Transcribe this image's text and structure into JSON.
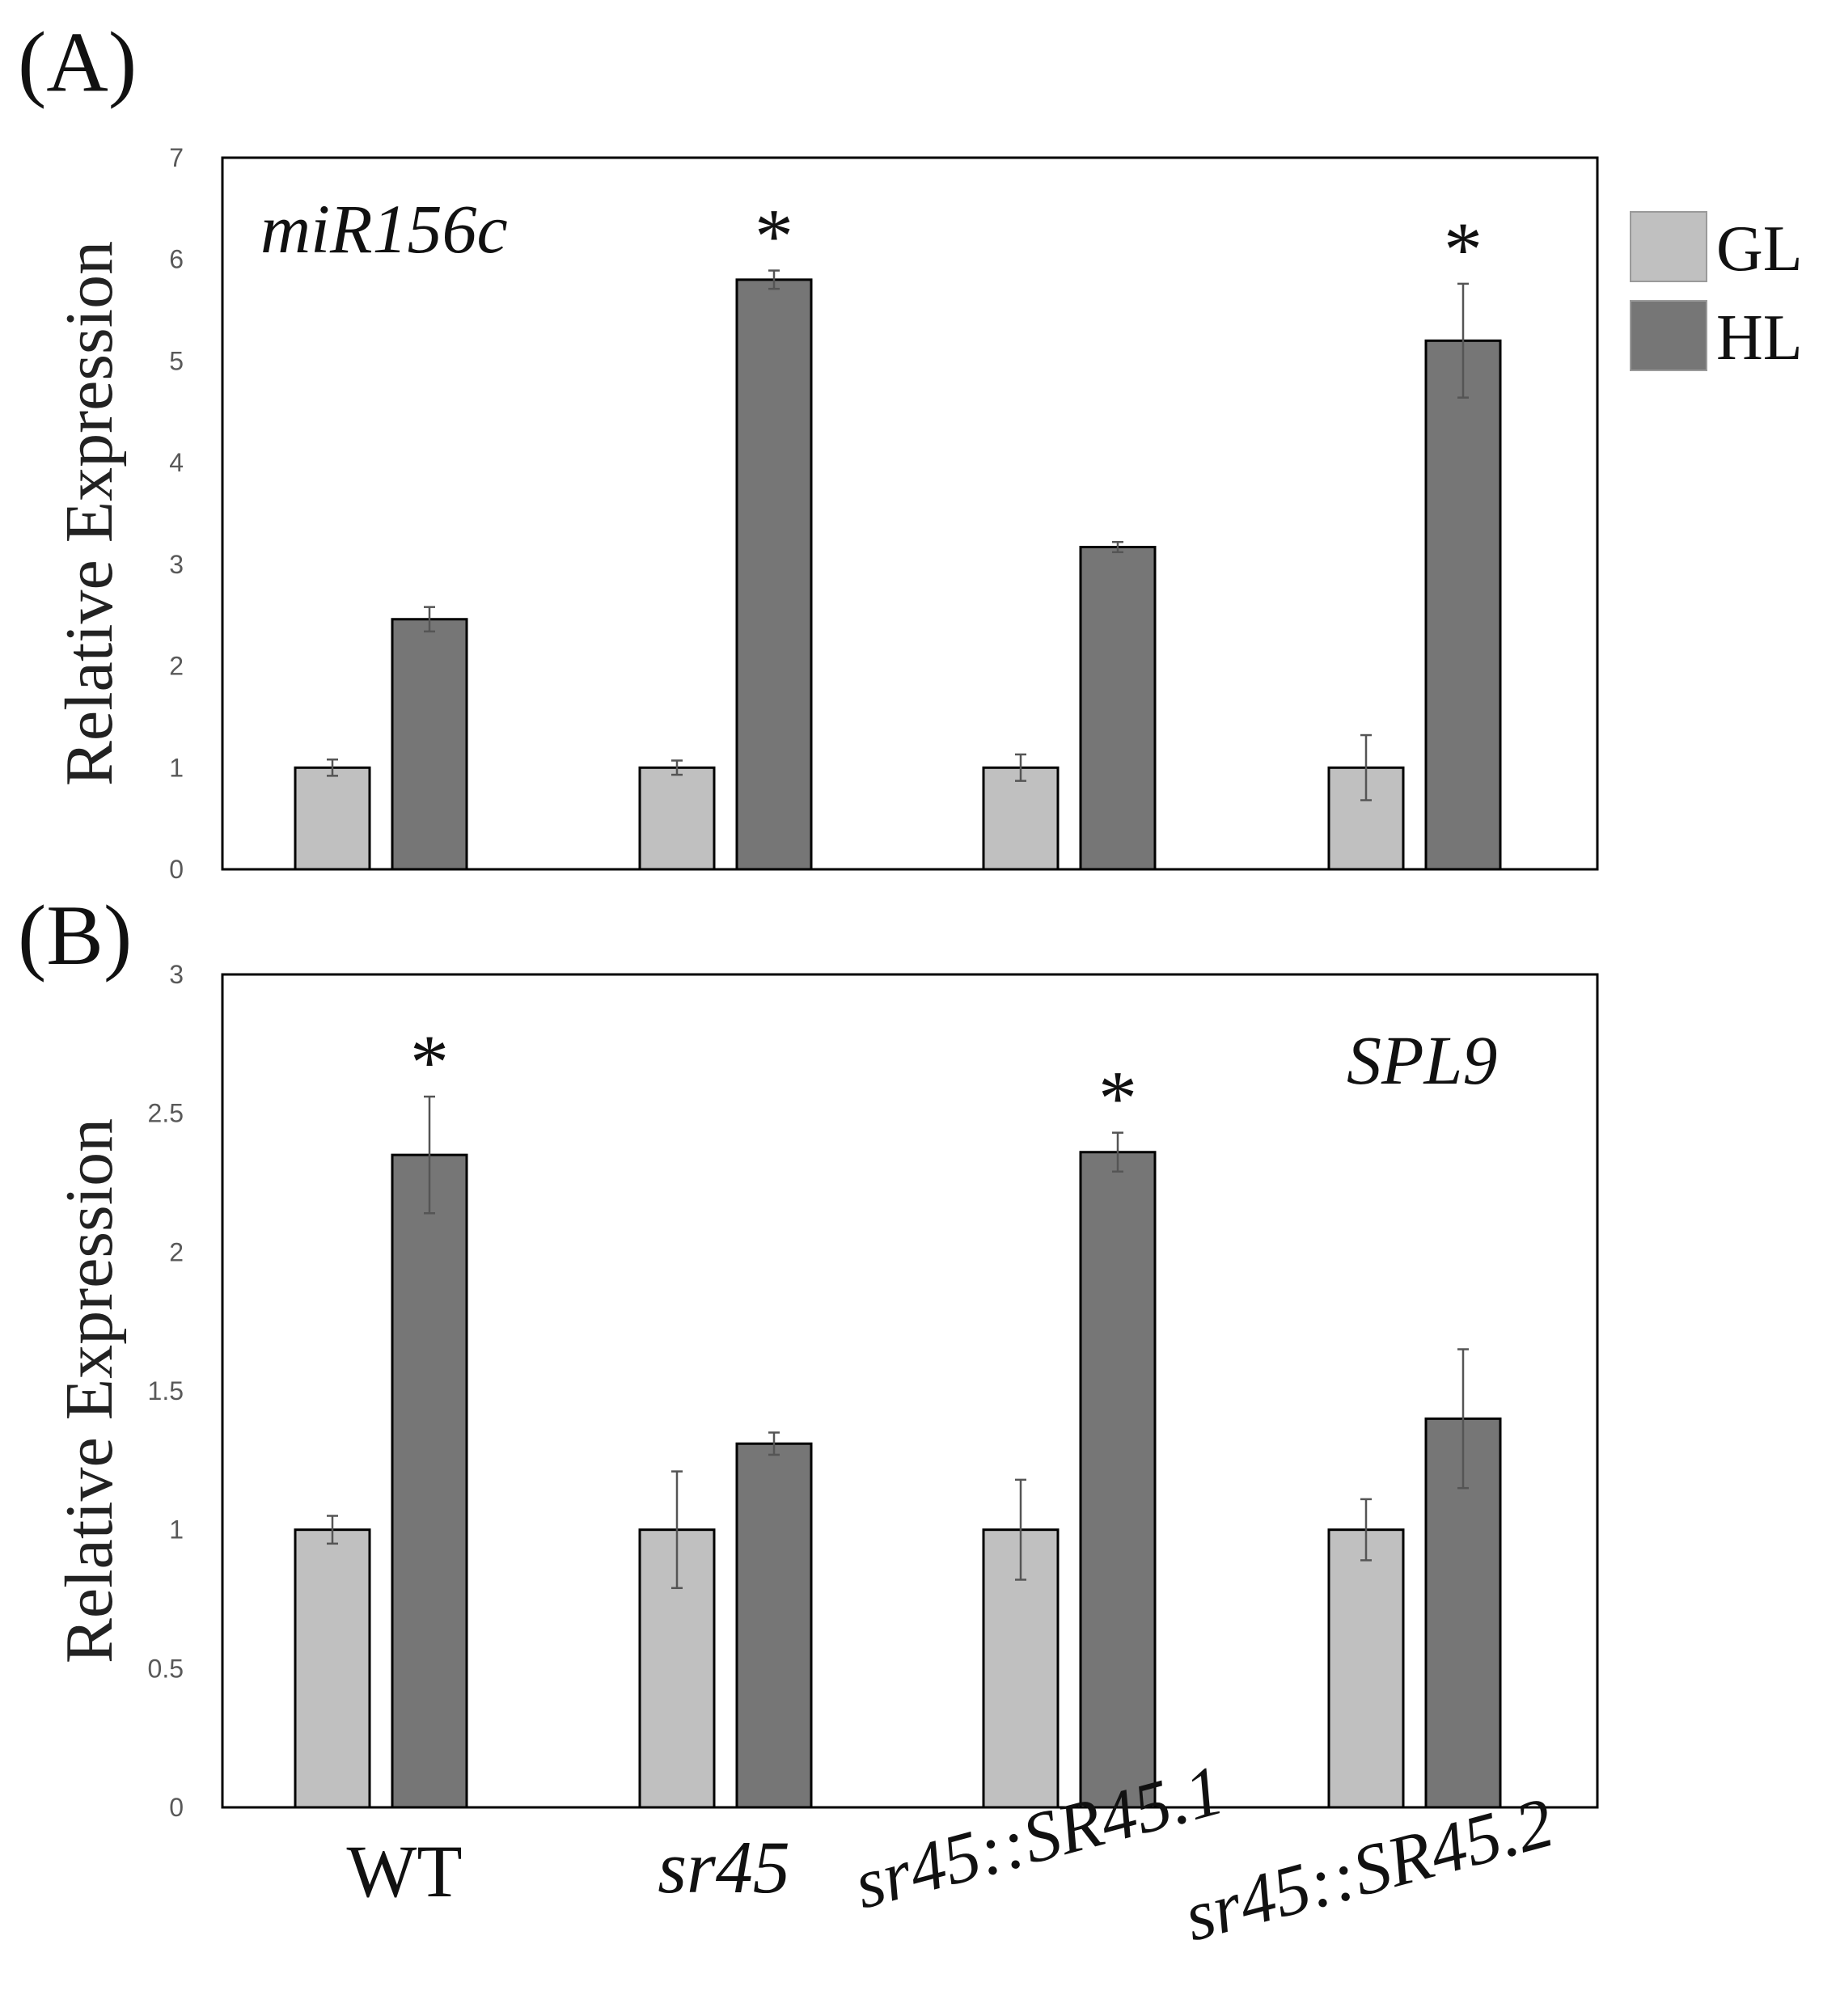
{
  "panel_labels": [
    "(A)",
    "(B)"
  ],
  "legend": {
    "entries": [
      {
        "label": "GL",
        "color": "#c0c0c0"
      },
      {
        "label": "HL",
        "color": "#767676"
      }
    ]
  },
  "colors": {
    "gl": "#c0c0c0",
    "hl": "#767676",
    "frame": "#000000",
    "tick_text": "#595959",
    "error_bar": "#555555"
  },
  "categories": [
    "WT",
    "sr45",
    "sr45::SR45.1",
    "sr45::SR45.2"
  ],
  "chart_data": [
    {
      "type": "bar",
      "panel": "(A)",
      "annotation": "miR156c",
      "ylabel": "Relative Expression",
      "ylim": [
        0,
        7
      ],
      "yticks": [
        "0",
        "1",
        "2",
        "3",
        "4",
        "5",
        "6",
        "7"
      ],
      "grid": false,
      "legend_position": "right",
      "categories": [
        "WT",
        "sr45",
        "sr45::SR45.1",
        "sr45::SR45.2"
      ],
      "series": [
        {
          "name": "GL",
          "values": [
            1.0,
            1.0,
            1.0,
            1.0
          ],
          "errors": [
            0.08,
            0.07,
            0.13,
            0.32
          ]
        },
        {
          "name": "HL",
          "values": [
            2.46,
            5.8,
            3.17,
            5.2
          ],
          "errors": [
            0.12,
            0.09,
            0.05,
            0.56
          ]
        }
      ],
      "significance": [
        {
          "category": "sr45",
          "series": "HL",
          "mark": "*"
        },
        {
          "category": "sr45::SR45.2",
          "series": "HL",
          "mark": "*"
        }
      ]
    },
    {
      "type": "bar",
      "panel": "(B)",
      "annotation": "SPL9",
      "ylabel": "Relative Expression",
      "ylim": [
        0,
        3
      ],
      "yticks": [
        "0",
        "0.5",
        "1",
        "1.5",
        "2",
        "2.5",
        "3"
      ],
      "grid": false,
      "categories": [
        "WT",
        "sr45",
        "sr45::SR45.1",
        "sr45::SR45.2"
      ],
      "series": [
        {
          "name": "GL",
          "values": [
            1.0,
            1.0,
            1.0,
            1.0
          ],
          "errors": [
            0.05,
            0.21,
            0.18,
            0.11
          ]
        },
        {
          "name": "HL",
          "values": [
            2.35,
            1.31,
            2.36,
            1.4
          ],
          "errors": [
            0.21,
            0.04,
            0.07,
            0.25
          ]
        }
      ],
      "significance": [
        {
          "category": "WT",
          "series": "HL",
          "mark": "*"
        },
        {
          "category": "sr45::SR45.1",
          "series": "HL",
          "mark": "*"
        }
      ]
    }
  ]
}
